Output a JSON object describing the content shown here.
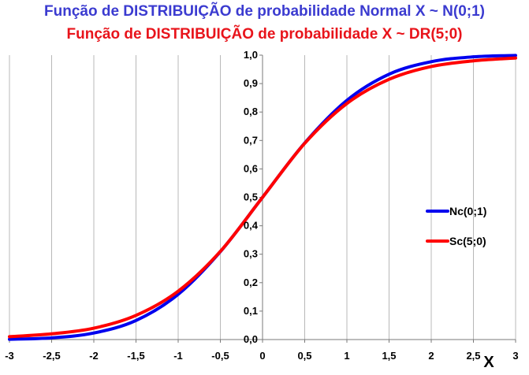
{
  "titles": {
    "line1": "Função de DISTRIBUIÇÃO de probabilidade Normal  X ~ N(0;1)",
    "line2": "Função de DISTRIBUIÇÃO de probabilidade X ~ DR(5;0)"
  },
  "colors": {
    "title1": "#3b3bd0",
    "title2": "#e8141b",
    "normal": "#0000ee",
    "dr": "#ff0000",
    "grid": "#b8b8b8"
  },
  "chart_data": {
    "type": "line",
    "xlabel": "X",
    "ylabel": "",
    "xlim": [
      -3,
      3
    ],
    "ylim": [
      0,
      1
    ],
    "x_ticks": [
      "-3",
      "-2,5",
      "-2",
      "-1,5",
      "-1",
      "-0,5",
      "0",
      "0,5",
      "1",
      "1,5",
      "2",
      "2,5",
      "3"
    ],
    "y_ticks": [
      "0,0",
      "0,1",
      "0,2",
      "0,3",
      "0,4",
      "0,5",
      "0,6",
      "0,7",
      "0,8",
      "0,9",
      "1,0"
    ],
    "grid": "vertical",
    "legend_position": "right",
    "series": [
      {
        "name": "Nc(0;1)",
        "color": "#0000ee",
        "x": [
          -3,
          -2.5,
          -2,
          -1.5,
          -1,
          -0.5,
          0,
          0.5,
          1,
          1.5,
          2,
          2.5,
          3
        ],
        "y": [
          0.001,
          0.006,
          0.023,
          0.067,
          0.159,
          0.309,
          0.5,
          0.691,
          0.841,
          0.933,
          0.977,
          0.994,
          0.999
        ]
      },
      {
        "name": "Sc(5;0)",
        "color": "#ff0000",
        "x": [
          -3,
          -2.5,
          -2,
          -1.5,
          -1,
          -0.5,
          0,
          0.5,
          1,
          1.5,
          2,
          2.5,
          3
        ],
        "y": [
          0.01,
          0.02,
          0.04,
          0.085,
          0.17,
          0.31,
          0.5,
          0.69,
          0.83,
          0.915,
          0.96,
          0.98,
          0.99
        ]
      }
    ]
  }
}
